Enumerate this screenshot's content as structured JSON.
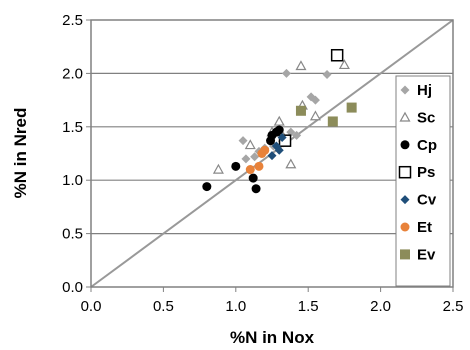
{
  "chart_data": {
    "type": "scatter",
    "xlabel": "%N in Nox",
    "ylabel": "%N in Nred",
    "xlim": [
      0.0,
      2.5
    ],
    "ylim": [
      0.0,
      2.5
    ],
    "x_ticks": [
      "0.0",
      "0.5",
      "1.0",
      "1.5",
      "2.0",
      "2.5"
    ],
    "y_ticks": [
      "0.0",
      "0.5",
      "1.0",
      "1.5",
      "2.0",
      "2.5"
    ],
    "grid": "horizontal",
    "legend_position": "right",
    "reference_line": "1:1",
    "series": [
      {
        "name": "Hj",
        "marker": "diamond",
        "color": "#a6a6a6",
        "points": [
          [
            1.05,
            1.37
          ],
          [
            1.07,
            1.2
          ],
          [
            1.13,
            1.22
          ],
          [
            1.16,
            1.27
          ],
          [
            1.2,
            1.3
          ],
          [
            1.26,
            1.32
          ],
          [
            1.33,
            1.35
          ],
          [
            1.35,
            2.0
          ],
          [
            1.38,
            1.45
          ],
          [
            1.42,
            1.42
          ],
          [
            1.52,
            1.78
          ],
          [
            1.55,
            1.75
          ],
          [
            1.63,
            1.99
          ]
        ]
      },
      {
        "name": "Sc",
        "marker": "triangle-open",
        "color": "#888888",
        "points": [
          [
            0.88,
            1.1
          ],
          [
            1.1,
            1.33
          ],
          [
            1.25,
            1.45
          ],
          [
            1.3,
            1.55
          ],
          [
            1.33,
            1.4
          ],
          [
            1.38,
            1.15
          ],
          [
            1.45,
            2.07
          ],
          [
            1.46,
            1.7
          ],
          [
            1.55,
            1.6
          ],
          [
            1.75,
            2.08
          ]
        ]
      },
      {
        "name": "Cp",
        "marker": "circle",
        "color": "#000000",
        "points": [
          [
            0.8,
            0.94
          ],
          [
            1.0,
            1.13
          ],
          [
            1.12,
            1.02
          ],
          [
            1.14,
            0.92
          ],
          [
            1.25,
            1.42
          ],
          [
            1.28,
            1.45
          ],
          [
            1.24,
            1.37
          ],
          [
            1.3,
            1.47
          ]
        ]
      },
      {
        "name": "Ps",
        "marker": "square-open",
        "color": "#000000",
        "points": [
          [
            1.34,
            1.37
          ],
          [
            1.7,
            2.17
          ]
        ]
      },
      {
        "name": "Cv",
        "marker": "diamond",
        "color": "#1f4e79",
        "points": [
          [
            1.25,
            1.23
          ],
          [
            1.28,
            1.32
          ],
          [
            1.3,
            1.28
          ],
          [
            1.32,
            1.4
          ]
        ]
      },
      {
        "name": "Et",
        "marker": "circle",
        "color": "#e8823a",
        "points": [
          [
            1.1,
            1.1
          ],
          [
            1.16,
            1.13
          ],
          [
            1.18,
            1.25
          ],
          [
            1.2,
            1.28
          ]
        ]
      },
      {
        "name": "Ev",
        "marker": "square",
        "color": "#8c8c5a",
        "points": [
          [
            1.45,
            1.65
          ],
          [
            1.67,
            1.55
          ],
          [
            1.8,
            1.68
          ]
        ]
      }
    ]
  }
}
